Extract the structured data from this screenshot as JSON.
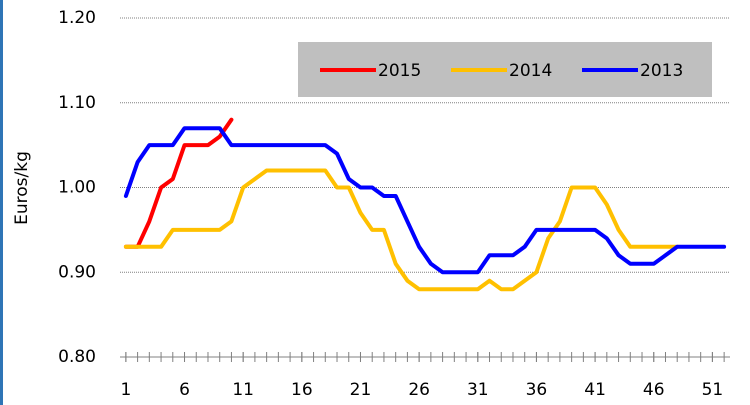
{
  "chart_data": {
    "type": "line",
    "y_label": "Euros/kg",
    "x": [
      1,
      2,
      3,
      4,
      5,
      6,
      7,
      8,
      9,
      10,
      11,
      12,
      13,
      14,
      15,
      16,
      17,
      18,
      19,
      20,
      21,
      22,
      23,
      24,
      25,
      26,
      27,
      28,
      29,
      30,
      31,
      32,
      33,
      34,
      35,
      36,
      37,
      38,
      39,
      40,
      41,
      42,
      43,
      44,
      45,
      46,
      47,
      48,
      49,
      50,
      51,
      52
    ],
    "series": [
      {
        "name": "2015",
        "color": "#ff0000",
        "values": [
          0.93,
          0.93,
          0.96,
          1.0,
          1.01,
          1.05,
          1.05,
          1.05,
          1.06,
          1.08,
          null,
          null,
          null,
          null,
          null,
          null,
          null,
          null,
          null,
          null,
          null,
          null,
          null,
          null,
          null,
          null,
          null,
          null,
          null,
          null,
          null,
          null,
          null,
          null,
          null,
          null,
          null,
          null,
          null,
          null,
          null,
          null,
          null,
          null,
          null,
          null,
          null,
          null,
          null,
          null,
          null,
          null
        ]
      },
      {
        "name": "2014",
        "color": "#ffc000",
        "values": [
          0.93,
          0.93,
          0.93,
          0.93,
          0.95,
          0.95,
          0.95,
          0.95,
          0.95,
          0.96,
          1.0,
          1.01,
          1.02,
          1.02,
          1.02,
          1.02,
          1.02,
          1.02,
          1.0,
          1.0,
          0.97,
          0.95,
          0.95,
          0.91,
          0.89,
          0.88,
          0.88,
          0.88,
          0.88,
          0.88,
          0.88,
          0.89,
          0.88,
          0.88,
          0.89,
          0.9,
          0.94,
          0.96,
          1.0,
          1.0,
          1.0,
          0.98,
          0.95,
          0.93,
          0.93,
          0.93,
          0.93,
          0.93,
          null,
          null,
          null,
          null
        ]
      },
      {
        "name": "2013",
        "color": "#0000ff",
        "values": [
          0.99,
          1.03,
          1.05,
          1.05,
          1.05,
          1.07,
          1.07,
          1.07,
          1.07,
          1.05,
          1.05,
          1.05,
          1.05,
          1.05,
          1.05,
          1.05,
          1.05,
          1.05,
          1.04,
          1.01,
          1.0,
          1.0,
          0.99,
          0.99,
          0.96,
          0.93,
          0.91,
          0.9,
          0.9,
          0.9,
          0.9,
          0.92,
          0.92,
          0.92,
          0.93,
          0.95,
          0.95,
          0.95,
          0.95,
          0.95,
          0.95,
          0.94,
          0.92,
          0.91,
          0.91,
          0.91,
          0.92,
          0.93,
          0.93,
          0.93,
          0.93,
          0.93
        ]
      }
    ],
    "xlim": [
      0.5,
      52.5
    ],
    "xticks": [
      1,
      6,
      11,
      16,
      21,
      26,
      31,
      36,
      41,
      46,
      51
    ],
    "ylim": [
      0.8,
      1.2
    ],
    "yticks": [
      {
        "value": 0.8,
        "label": "0.80"
      },
      {
        "value": 0.9,
        "label": "0.90"
      },
      {
        "value": 1.0,
        "label": "1.00"
      },
      {
        "value": 1.1,
        "label": "1.10"
      },
      {
        "value": 1.2,
        "label": "1.20"
      }
    ],
    "grid": true,
    "legend": "top-right"
  }
}
